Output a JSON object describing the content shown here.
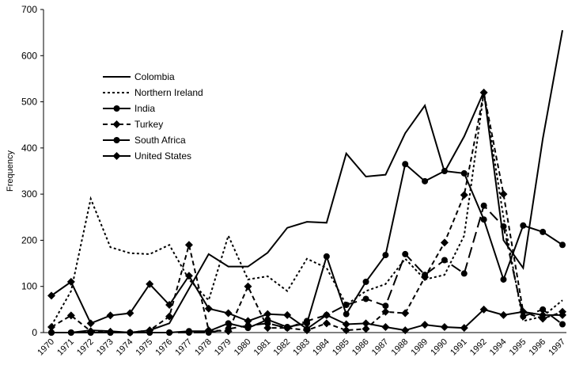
{
  "chart_data": {
    "type": "line",
    "y_label": "Frequency",
    "categories": [
      "1970",
      "1971",
      "1972",
      "1973",
      "1974",
      "1975",
      "1976",
      "1977",
      "1978",
      "1979",
      "1980",
      "1981",
      "1982",
      "1983",
      "1984",
      "1985",
      "1986",
      "1987",
      "1988",
      "1989",
      "1990",
      "1991",
      "1992",
      "1994",
      "1995",
      "1996",
      "1997"
    ],
    "ylim": [
      0,
      700
    ],
    "yticks": [
      0,
      100,
      200,
      300,
      400,
      500,
      600,
      700
    ],
    "grid": false,
    "legend": "upper-left",
    "series": [
      {
        "name": "Colombia",
        "color": "#000000",
        "line_style": "solid",
        "marker": "none",
        "values": [
          0,
          0,
          5,
          3,
          0,
          5,
          20,
          95,
          170,
          143,
          143,
          173,
          227,
          240,
          238,
          388,
          338,
          342,
          432,
          492,
          348,
          425,
          522,
          200,
          140,
          420,
          655
        ]
      },
      {
        "name": "Northern Ireland",
        "color": "#000000",
        "line_style": "dotted",
        "marker": "none",
        "values": [
          15,
          90,
          290,
          185,
          172,
          170,
          190,
          115,
          70,
          210,
          115,
          122,
          90,
          160,
          140,
          60,
          90,
          105,
          160,
          115,
          125,
          210,
          520,
          250,
          25,
          35,
          70
        ]
      },
      {
        "name": "India",
        "color": "#000000",
        "line_style": "solid",
        "marker": "circle",
        "values": [
          0,
          0,
          0,
          0,
          0,
          0,
          0,
          3,
          3,
          20,
          10,
          28,
          12,
          20,
          165,
          40,
          110,
          168,
          365,
          328,
          350,
          345,
          245,
          115,
          232,
          218,
          190
        ]
      },
      {
        "name": "Turkey",
        "color": "#000000",
        "line_style": "dashed",
        "marker": "diamond",
        "values": [
          12,
          37,
          3,
          2,
          0,
          5,
          35,
          190,
          5,
          3,
          100,
          10,
          10,
          5,
          20,
          5,
          8,
          45,
          42,
          120,
          195,
          298,
          520,
          300,
          45,
          30,
          45
        ]
      },
      {
        "name": "South Africa",
        "color": "#000000",
        "line_style": "longdash",
        "marker": "circle",
        "values": [
          0,
          0,
          0,
          0,
          0,
          0,
          0,
          0,
          0,
          8,
          15,
          20,
          10,
          25,
          38,
          60,
          73,
          58,
          170,
          125,
          157,
          128,
          275,
          230,
          35,
          50,
          18
        ]
      },
      {
        "name": "United States",
        "color": "#000000",
        "line_style": "solid",
        "marker": "diamond",
        "values": [
          80,
          110,
          20,
          37,
          42,
          105,
          60,
          123,
          52,
          42,
          25,
          40,
          38,
          8,
          38,
          18,
          20,
          12,
          5,
          17,
          12,
          10,
          50,
          38,
          45,
          38,
          38
        ]
      }
    ]
  }
}
